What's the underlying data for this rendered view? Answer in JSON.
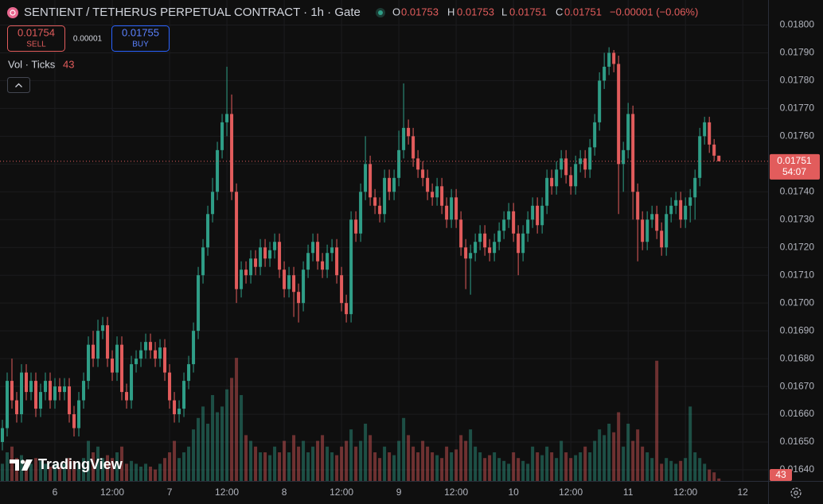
{
  "chart_data": {
    "type": "candlestick",
    "title": "SENTIENT / TETHERUS PERPETUAL CONTRACT · 1h · Gate",
    "ohlc_labels": [
      "O",
      "H",
      "L",
      "C"
    ],
    "change": "−0.00001 (−0.06%)",
    "sell_price": 0.01754,
    "sell_label": "SELL",
    "spread": 1e-05,
    "buy_price": 0.01755,
    "buy_label": "BUY",
    "volume_label": "Vol · Ticks",
    "countdown": "54:07",
    "brand": "TradingView",
    "up_color": "#2f9e87",
    "down_color": "#e25c5c",
    "grid": true,
    "xlim": [
      -0.5,
      160.3
    ],
    "ylim": [
      0.01636,
      0.01809
    ],
    "y2lim": [
      0,
      8400
    ],
    "xticks": [
      {
        "value": 11,
        "label": "6"
      },
      {
        "value": 23,
        "label": "12:00"
      },
      {
        "value": 35,
        "label": "7"
      },
      {
        "value": 47,
        "label": "12:00"
      },
      {
        "value": 59,
        "label": "8"
      },
      {
        "value": 71,
        "label": "12:00"
      },
      {
        "value": 83,
        "label": "9"
      },
      {
        "value": 95,
        "label": "12:00"
      },
      {
        "value": 107,
        "label": "10"
      },
      {
        "value": 119,
        "label": "12:00"
      },
      {
        "value": 131,
        "label": "11"
      },
      {
        "value": 143,
        "label": "12:00"
      },
      {
        "value": 155,
        "label": "12"
      }
    ],
    "yticks": [
      {
        "value": 0.0164,
        "label": "0.01640"
      },
      {
        "value": 0.0165,
        "label": "0.01650"
      },
      {
        "value": 0.0166,
        "label": "0.01660"
      },
      {
        "value": 0.0167,
        "label": "0.01670"
      },
      {
        "value": 0.0168,
        "label": "0.01680"
      },
      {
        "value": 0.0169,
        "label": "0.01690"
      },
      {
        "value": 0.017,
        "label": "0.01700"
      },
      {
        "value": 0.0171,
        "label": "0.01710"
      },
      {
        "value": 0.0172,
        "label": "0.01720"
      },
      {
        "value": 0.0173,
        "label": "0.01730"
      },
      {
        "value": 0.0174,
        "label": "0.01740"
      },
      {
        "value": 0.0175,
        "label": "0.01750"
      },
      {
        "value": 0.0176,
        "label": "0.01760"
      },
      {
        "value": 0.0177,
        "label": "0.01770"
      },
      {
        "value": 0.0178,
        "label": "0.01780"
      },
      {
        "value": 0.0179,
        "label": "0.01790"
      },
      {
        "value": 0.018,
        "label": "0.01800"
      }
    ],
    "open": [
      0.0165,
      0.01655,
      0.01672,
      0.01665,
      0.0166,
      0.01675,
      0.01668,
      0.01672,
      0.01662,
      0.01668,
      0.01672,
      0.01665,
      0.0167,
      0.01668,
      0.0167,
      0.0166,
      0.01655,
      0.01665,
      0.01672,
      0.01685,
      0.0168,
      0.0169,
      0.01692,
      0.0168,
      0.01675,
      0.01685,
      0.01668,
      0.01665,
      0.01678,
      0.0168,
      0.01683,
      0.01686,
      0.01683,
      0.0168,
      0.01684,
      0.01675,
      0.01665,
      0.0166,
      0.01662,
      0.01672,
      0.01678,
      0.0169,
      0.0171,
      0.0172,
      0.01732,
      0.0174,
      0.01755,
      0.01765,
      0.01768,
      0.0174,
      0.01705,
      0.01712,
      0.0171,
      0.01716,
      0.01713,
      0.0172,
      0.01716,
      0.01719,
      0.01722,
      0.01712,
      0.01705,
      0.0171,
      0.01704,
      0.017,
      0.01712,
      0.01718,
      0.01722,
      0.01715,
      0.01712,
      0.01718,
      0.0172,
      0.0171,
      0.017,
      0.01696,
      0.0173,
      0.01725,
      0.0174,
      0.0175,
      0.01738,
      0.01735,
      0.01732,
      0.01745,
      0.0174,
      0.01745,
      0.01755,
      0.01763,
      0.0176,
      0.01752,
      0.01748,
      0.01745,
      0.0174,
      0.01738,
      0.01742,
      0.01735,
      0.0173,
      0.01738,
      0.0173,
      0.0172,
      0.01716,
      0.01718,
      0.01722,
      0.01725,
      0.0172,
      0.01718,
      0.01722,
      0.01726,
      0.0173,
      0.01733,
      0.01725,
      0.01718,
      0.01725,
      0.0173,
      0.01735,
      0.01728,
      0.01735,
      0.01745,
      0.01742,
      0.01748,
      0.01752,
      0.01746,
      0.01742,
      0.0175,
      0.01752,
      0.01748,
      0.01756,
      0.01765,
      0.0178,
      0.01785,
      0.0179,
      0.01786,
      0.0175,
      0.01755,
      0.01768,
      0.0174,
      0.0173,
      0.01722,
      0.0173,
      0.01732,
      0.01726,
      0.0172,
      0.01732,
      0.01735,
      0.01737,
      0.0173,
      0.01735,
      0.01738,
      0.01745,
      0.0176,
      0.01765,
      0.01757,
      0.01753
    ],
    "high": [
      0.01658,
      0.01675,
      0.0168,
      0.01668,
      0.01678,
      0.01678,
      0.01675,
      0.01675,
      0.01671,
      0.01675,
      0.01675,
      0.01673,
      0.01673,
      0.01673,
      0.01673,
      0.01663,
      0.01668,
      0.01675,
      0.01688,
      0.0169,
      0.01694,
      0.01695,
      0.01695,
      0.01683,
      0.01688,
      0.01688,
      0.01671,
      0.01681,
      0.01683,
      0.01686,
      0.01689,
      0.01689,
      0.01686,
      0.01687,
      0.01687,
      0.01678,
      0.01668,
      0.01665,
      0.01675,
      0.01681,
      0.01693,
      0.01713,
      0.01723,
      0.01735,
      0.01745,
      0.01758,
      0.01768,
      0.01785,
      0.01775,
      0.01743,
      0.01715,
      0.01715,
      0.01719,
      0.01719,
      0.01723,
      0.01723,
      0.01722,
      0.01725,
      0.01725,
      0.01715,
      0.01713,
      0.01713,
      0.01707,
      0.01715,
      0.01721,
      0.01725,
      0.01725,
      0.01718,
      0.01721,
      0.01723,
      0.01723,
      0.01713,
      0.01703,
      0.01733,
      0.01733,
      0.01743,
      0.0176,
      0.01753,
      0.01741,
      0.01738,
      0.01748,
      0.01748,
      0.01748,
      0.01762,
      0.01779,
      0.01766,
      0.01763,
      0.01755,
      0.01751,
      0.01748,
      0.01743,
      0.01745,
      0.01745,
      0.01738,
      0.01741,
      0.01741,
      0.01733,
      0.01723,
      0.01721,
      0.01725,
      0.01728,
      0.01728,
      0.01723,
      0.01725,
      0.01729,
      0.01733,
      0.01736,
      0.01736,
      0.01728,
      0.01728,
      0.01733,
      0.01738,
      0.01738,
      0.01738,
      0.01748,
      0.01748,
      0.01751,
      0.01755,
      0.01755,
      0.01749,
      0.01753,
      0.01755,
      0.01755,
      0.01759,
      0.01768,
      0.01783,
      0.0179,
      0.01792,
      0.01791,
      0.01789,
      0.01758,
      0.01772,
      0.01771,
      0.01743,
      0.01733,
      0.01733,
      0.01735,
      0.01735,
      0.01729,
      0.01735,
      0.01738,
      0.0174,
      0.0174,
      0.01738,
      0.01741,
      0.01748,
      0.01763,
      0.01767,
      0.01767,
      0.01759,
      0.01753
    ],
    "low": [
      0.01647,
      0.01652,
      0.01662,
      0.01657,
      0.01657,
      0.01665,
      0.01665,
      0.01659,
      0.01659,
      0.01665,
      0.01662,
      0.01662,
      0.01665,
      0.01665,
      0.01657,
      0.01652,
      0.01652,
      0.01662,
      0.01669,
      0.01677,
      0.01677,
      0.01687,
      0.01677,
      0.01672,
      0.01672,
      0.01665,
      0.01662,
      0.01662,
      0.01675,
      0.01677,
      0.0168,
      0.0168,
      0.01677,
      0.01677,
      0.01672,
      0.01662,
      0.01657,
      0.01657,
      0.01659,
      0.01669,
      0.01675,
      0.01687,
      0.01707,
      0.01717,
      0.01729,
      0.01737,
      0.01752,
      0.0176,
      0.01737,
      0.017,
      0.01702,
      0.01707,
      0.01707,
      0.0171,
      0.0171,
      0.01713,
      0.01713,
      0.01716,
      0.01709,
      0.01702,
      0.01702,
      0.01695,
      0.01693,
      0.01697,
      0.01709,
      0.01715,
      0.01712,
      0.01709,
      0.01709,
      0.01715,
      0.01707,
      0.01697,
      0.01693,
      0.01693,
      0.01722,
      0.01722,
      0.01737,
      0.01735,
      0.01732,
      0.01729,
      0.01729,
      0.01737,
      0.01737,
      0.01742,
      0.01752,
      0.01757,
      0.01749,
      0.01745,
      0.01742,
      0.01737,
      0.01735,
      0.01735,
      0.01732,
      0.01727,
      0.01727,
      0.01727,
      0.01717,
      0.01705,
      0.01703,
      0.01715,
      0.01719,
      0.01717,
      0.01715,
      0.01715,
      0.01719,
      0.01723,
      0.01727,
      0.01722,
      0.0171,
      0.01715,
      0.01722,
      0.01727,
      0.01725,
      0.01725,
      0.01732,
      0.01739,
      0.01739,
      0.01745,
      0.01743,
      0.01739,
      0.01739,
      0.01747,
      0.01745,
      0.01745,
      0.01753,
      0.01762,
      0.01777,
      0.01782,
      0.01783,
      0.01732,
      0.0174,
      0.01752,
      0.0173,
      0.01715,
      0.01719,
      0.01719,
      0.01727,
      0.01723,
      0.01717,
      0.01717,
      0.01729,
      0.01732,
      0.01727,
      0.01727,
      0.01729,
      0.0173,
      0.01742,
      0.01757,
      0.01754,
      0.01751,
      0.01751
    ],
    "close": [
      0.01655,
      0.01672,
      0.01665,
      0.0166,
      0.01675,
      0.01668,
      0.01672,
      0.01662,
      0.01668,
      0.01672,
      0.01665,
      0.0167,
      0.01668,
      0.0167,
      0.0166,
      0.01655,
      0.01665,
      0.01672,
      0.01685,
      0.0168,
      0.0169,
      0.01692,
      0.0168,
      0.01675,
      0.01685,
      0.01668,
      0.01665,
      0.01678,
      0.0168,
      0.01683,
      0.01686,
      0.01683,
      0.0168,
      0.01684,
      0.01675,
      0.01665,
      0.0166,
      0.01662,
      0.01672,
      0.01678,
      0.0169,
      0.0171,
      0.0172,
      0.01732,
      0.0174,
      0.01755,
      0.01765,
      0.01768,
      0.0174,
      0.01705,
      0.01712,
      0.0171,
      0.01716,
      0.01713,
      0.0172,
      0.01716,
      0.01719,
      0.01722,
      0.01712,
      0.01705,
      0.0171,
      0.01704,
      0.017,
      0.01712,
      0.01718,
      0.01722,
      0.01715,
      0.01712,
      0.01718,
      0.0172,
      0.0171,
      0.017,
      0.01696,
      0.0173,
      0.01725,
      0.0174,
      0.0175,
      0.01738,
      0.01735,
      0.01732,
      0.01745,
      0.0174,
      0.01745,
      0.01755,
      0.01763,
      0.0176,
      0.01752,
      0.01748,
      0.01745,
      0.0174,
      0.01738,
      0.01742,
      0.01735,
      0.0173,
      0.01738,
      0.0173,
      0.0172,
      0.01716,
      0.01718,
      0.01722,
      0.01725,
      0.0172,
      0.01718,
      0.01722,
      0.01726,
      0.0173,
      0.01733,
      0.01725,
      0.01718,
      0.01725,
      0.0173,
      0.01735,
      0.01728,
      0.01735,
      0.01745,
      0.01742,
      0.01748,
      0.01752,
      0.01746,
      0.01742,
      0.0175,
      0.01752,
      0.01748,
      0.01756,
      0.01765,
      0.0178,
      0.01785,
      0.0179,
      0.01786,
      0.0175,
      0.01755,
      0.01768,
      0.0174,
      0.0173,
      0.01722,
      0.0173,
      0.01732,
      0.01726,
      0.0172,
      0.01732,
      0.01735,
      0.01737,
      0.0173,
      0.01735,
      0.01738,
      0.01745,
      0.0176,
      0.01765,
      0.01757,
      0.01753,
      0.01751
    ],
    "volume": [
      300,
      500,
      600,
      400,
      450,
      350,
      300,
      400,
      350,
      300,
      250,
      300,
      250,
      300,
      400,
      350,
      300,
      400,
      700,
      500,
      600,
      400,
      450,
      400,
      500,
      600,
      300,
      350,
      300,
      250,
      300,
      250,
      200,
      300,
      400,
      500,
      700,
      400,
      500,
      600,
      900,
      1100,
      1300,
      1000,
      1500,
      1200,
      1300,
      1600,
      1800,
      2150,
      1500,
      800,
      700,
      600,
      500,
      500,
      450,
      600,
      500,
      700,
      500,
      800,
      600,
      700,
      500,
      600,
      700,
      800,
      600,
      500,
      450,
      600,
      700,
      900,
      600,
      700,
      1000,
      800,
      500,
      400,
      600,
      500,
      450,
      700,
      1100,
      800,
      600,
      500,
      700,
      600,
      500,
      450,
      400,
      600,
      500,
      550,
      800,
      700,
      900,
      600,
      500,
      400,
      450,
      500,
      400,
      350,
      300,
      500,
      400,
      350,
      300,
      600,
      500,
      450,
      600,
      500,
      400,
      700,
      500,
      400,
      450,
      500,
      600,
      500,
      700,
      900,
      800,
      1000,
      850,
      1200,
      600,
      1000,
      700,
      900,
      600,
      500,
      400,
      2100,
      300,
      400,
      350,
      300,
      350,
      400,
      1300,
      500,
      400,
      300,
      200,
      150,
      43
    ]
  }
}
